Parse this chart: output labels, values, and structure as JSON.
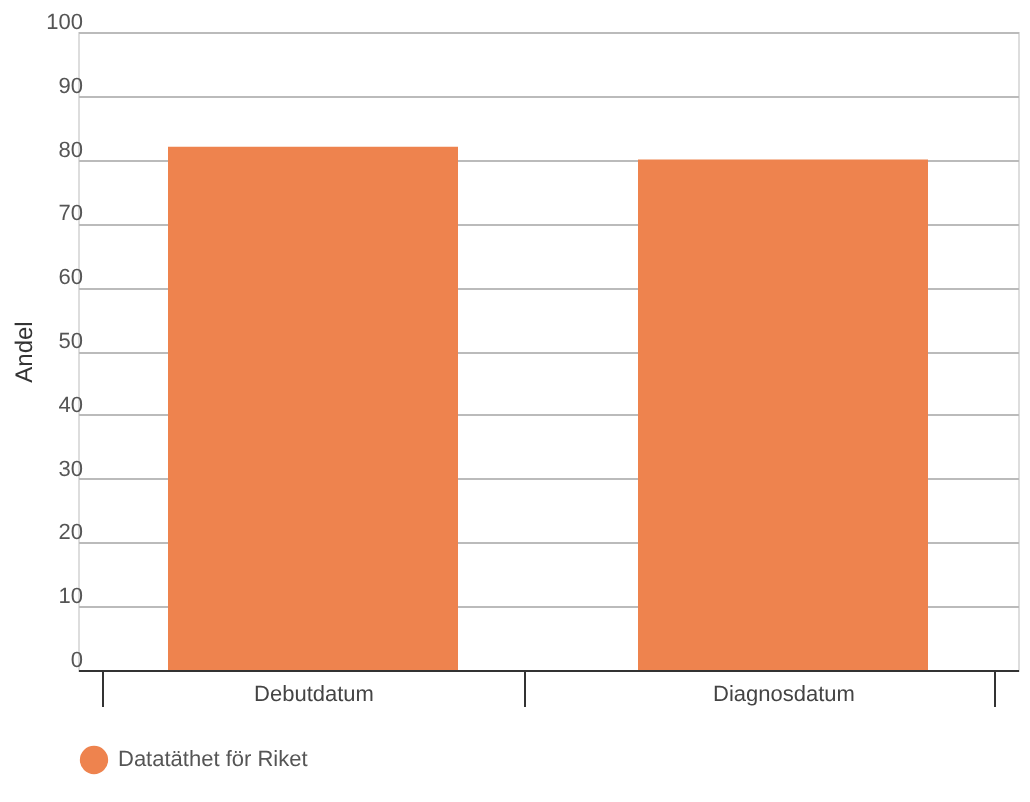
{
  "chart_data": {
    "type": "bar",
    "ylabel": "Andel",
    "categories": [
      "Debutdatum",
      "Diagnosdatum"
    ],
    "series": [
      {
        "name": "Datatäthet för Riket",
        "color": "#ee834e",
        "values": [
          82,
          80
        ]
      }
    ],
    "ylim": [
      0,
      100
    ],
    "yticks": [
      0,
      10,
      20,
      30,
      40,
      50,
      60,
      70,
      80,
      90,
      100
    ],
    "grid": "y",
    "legend": "bottom"
  }
}
